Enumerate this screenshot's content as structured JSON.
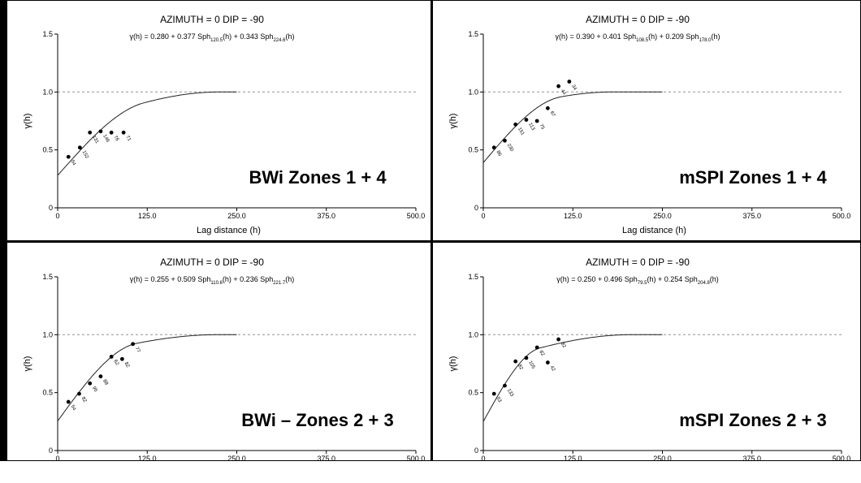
{
  "chart_data": [
    {
      "type": "scatter",
      "header": "AZIMUTH = 0   DIP = -90",
      "equation": {
        "prefix": "γ(h) = 0.280 + 0.377 Sph",
        "sub1": "120.5",
        "mid": "(h) + 0.343 Sph",
        "sub2": "224.6",
        "suffix": "(h)"
      },
      "ylabel": "γ(h)",
      "xlabel": "Lag distance (h)",
      "zone_label": "BWi Zones 1 + 4",
      "xlim": [
        0,
        500
      ],
      "ylim": [
        0,
        1.5
      ],
      "x_ticks": [
        "0",
        "125.0",
        "250.0",
        "375.0",
        "500.0"
      ],
      "y_ticks": [
        "0",
        "0.5",
        "1.0",
        "1.5"
      ],
      "sill_line": 1.0,
      "model": {
        "nugget": 0.28,
        "components": [
          {
            "c": 0.377,
            "a": 120.5
          },
          {
            "c": 0.343,
            "a": 224.6
          }
        ]
      },
      "points": [
        {
          "x": 15,
          "y": 0.44,
          "label": "54"
        },
        {
          "x": 31,
          "y": 0.52,
          "label": "152"
        },
        {
          "x": 45,
          "y": 0.65,
          "label": "131"
        },
        {
          "x": 60,
          "y": 0.66,
          "label": "146"
        },
        {
          "x": 75,
          "y": 0.65,
          "label": "76"
        },
        {
          "x": 92,
          "y": 0.65,
          "label": "71"
        }
      ]
    },
    {
      "type": "scatter",
      "header": "AZIMUTH = 0   DIP = -90",
      "equation": {
        "prefix": "γ(h) = 0.390 + 0.401 Sph",
        "sub1": "108.5",
        "mid": "(h) + 0.209 Sph",
        "sub2": "178.0",
        "suffix": "(h)"
      },
      "ylabel": "γ(h)",
      "xlabel": "Lag distance (h)",
      "zone_label": "mSPI Zones 1 + 4",
      "xlim": [
        0,
        500
      ],
      "ylim": [
        0,
        1.5
      ],
      "x_ticks": [
        "0",
        "125.0",
        "250.0",
        "375.0",
        "500.0"
      ],
      "y_ticks": [
        "0",
        "0.5",
        "1.0",
        "1.5"
      ],
      "sill_line": 1.0,
      "model": {
        "nugget": 0.39,
        "components": [
          {
            "c": 0.401,
            "a": 108.5
          },
          {
            "c": 0.209,
            "a": 178.0
          }
        ]
      },
      "points": [
        {
          "x": 15,
          "y": 0.52,
          "label": "86"
        },
        {
          "x": 30,
          "y": 0.58,
          "label": "230"
        },
        {
          "x": 45,
          "y": 0.72,
          "label": "151"
        },
        {
          "x": 60,
          "y": 0.76,
          "label": "113"
        },
        {
          "x": 75,
          "y": 0.75,
          "label": "75"
        },
        {
          "x": 90,
          "y": 0.86,
          "label": "67"
        },
        {
          "x": 105,
          "y": 1.05,
          "label": "44"
        },
        {
          "x": 120,
          "y": 1.09,
          "label": "34"
        }
      ]
    },
    {
      "type": "scatter",
      "header": "AZIMUTH = 0   DIP = -90",
      "equation": {
        "prefix": "γ(h) = 0.255 + 0.509 Sph",
        "sub1": "110.6",
        "mid": "(h) + 0.236 Sph",
        "sub2": "221.7",
        "suffix": "(h)"
      },
      "ylabel": "γ(h)",
      "xlabel": "",
      "zone_label": "BWi – Zones 2 + 3",
      "xlim": [
        0,
        500
      ],
      "ylim": [
        0,
        1.5
      ],
      "x_ticks": [
        "0",
        "125.0",
        "250.0",
        "375.0",
        "500.0"
      ],
      "y_ticks": [
        "0",
        "0.5",
        "1.0",
        "1.5"
      ],
      "sill_line": 1.0,
      "model": {
        "nugget": 0.255,
        "components": [
          {
            "c": 0.509,
            "a": 110.6
          },
          {
            "c": 0.236,
            "a": 221.7
          }
        ]
      },
      "points": [
        {
          "x": 15,
          "y": 0.42,
          "label": "54"
        },
        {
          "x": 30,
          "y": 0.49,
          "label": "82"
        },
        {
          "x": 45,
          "y": 0.58,
          "label": "95"
        },
        {
          "x": 60,
          "y": 0.64,
          "label": "88"
        },
        {
          "x": 75,
          "y": 0.81,
          "label": "62"
        },
        {
          "x": 90,
          "y": 0.79,
          "label": "82"
        },
        {
          "x": 105,
          "y": 0.92,
          "label": "77"
        }
      ]
    },
    {
      "type": "scatter",
      "header": "AZIMUTH = 0   DIP = -90",
      "equation": {
        "prefix": "γ(h) = 0.250 + 0.496 Sph",
        "sub1": "79.5",
        "mid": "(h) + 0.254 Sph",
        "sub2": "204.8",
        "suffix": "(h)"
      },
      "ylabel": "γ(h)",
      "xlabel": "",
      "zone_label": "mSPI Zones 2 + 3",
      "xlim": [
        0,
        500
      ],
      "ylim": [
        0,
        1.5
      ],
      "x_ticks": [
        "0",
        "125.0",
        "250.0",
        "375.0",
        "500.0"
      ],
      "y_ticks": [
        "0",
        "0.5",
        "1.0",
        "1.5"
      ],
      "sill_line": 1.0,
      "model": {
        "nugget": 0.25,
        "components": [
          {
            "c": 0.496,
            "a": 79.5
          },
          {
            "c": 0.254,
            "a": 204.8
          }
        ]
      },
      "points": [
        {
          "x": 15,
          "y": 0.49,
          "label": "53"
        },
        {
          "x": 30,
          "y": 0.56,
          "label": "133"
        },
        {
          "x": 45,
          "y": 0.77,
          "label": "82"
        },
        {
          "x": 60,
          "y": 0.8,
          "label": "105"
        },
        {
          "x": 75,
          "y": 0.89,
          "label": "82"
        },
        {
          "x": 90,
          "y": 0.76,
          "label": "42"
        },
        {
          "x": 105,
          "y": 0.96,
          "label": "82"
        }
      ]
    }
  ]
}
